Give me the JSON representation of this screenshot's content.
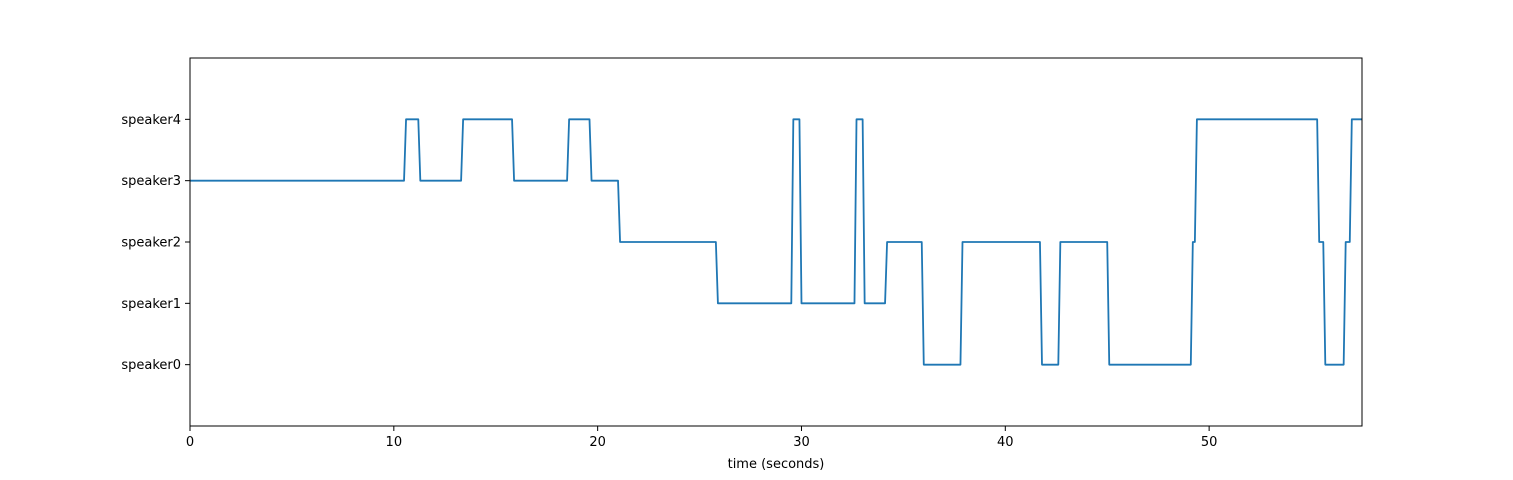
{
  "chart_data": {
    "type": "line",
    "title": "",
    "xlabel": "time (seconds)",
    "ylabel": "",
    "xlim": [
      0,
      57.5
    ],
    "ylim": [
      -1,
      5
    ],
    "grid": false,
    "x_ticks": [
      0,
      10,
      20,
      30,
      40,
      50
    ],
    "y_ticks": [
      {
        "value": 0,
        "label": "speaker0"
      },
      {
        "value": 1,
        "label": "speaker1"
      },
      {
        "value": 2,
        "label": "speaker2"
      },
      {
        "value": 3,
        "label": "speaker3"
      },
      {
        "value": 4,
        "label": "speaker4"
      }
    ],
    "line_color": "#1f77b4",
    "series": [
      {
        "x": [
          0,
          10.5,
          10.6,
          11.2,
          11.3,
          13.3,
          13.4,
          15.8,
          15.9,
          18.5,
          18.6,
          19.6,
          19.7,
          21.0,
          21.1,
          25.8,
          25.9,
          29.5,
          29.6,
          29.9,
          30.0,
          32.6,
          32.7,
          33.0,
          33.1,
          34.1,
          34.2,
          35.9,
          36.0,
          37.8,
          37.9,
          41.7,
          41.8,
          42.6,
          42.7,
          45.0,
          45.1,
          49.1,
          49.2,
          49.3,
          49.4,
          55.3,
          55.4,
          55.6,
          55.7,
          56.6,
          56.7,
          56.9,
          57.0,
          57.5
        ],
        "y": [
          3,
          3,
          4,
          4,
          3,
          3,
          4,
          4,
          3,
          3,
          4,
          4,
          3,
          3,
          2,
          2,
          1,
          1,
          4,
          4,
          1,
          1,
          4,
          4,
          1,
          1,
          2,
          2,
          0,
          0,
          2,
          2,
          0,
          0,
          2,
          2,
          0,
          0,
          2,
          2,
          4,
          4,
          2,
          2,
          0,
          0,
          2,
          2,
          4,
          4
        ]
      }
    ]
  }
}
